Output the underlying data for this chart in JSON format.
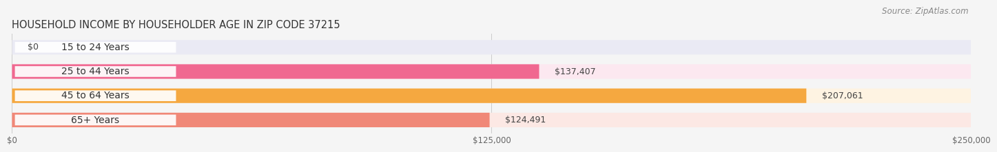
{
  "title": "HOUSEHOLD INCOME BY HOUSEHOLDER AGE IN ZIP CODE 37215",
  "source": "Source: ZipAtlas.com",
  "categories": [
    "15 to 24 Years",
    "25 to 44 Years",
    "45 to 64 Years",
    "65+ Years"
  ],
  "values": [
    0,
    137407,
    207061,
    124491
  ],
  "labels": [
    "$0",
    "$137,407",
    "$207,061",
    "$124,491"
  ],
  "bar_colors": [
    "#adadd6",
    "#f06890",
    "#f5a840",
    "#f08878"
  ],
  "bg_colors": [
    "#eaeaf4",
    "#fce8f0",
    "#fef3e2",
    "#fce8e4"
  ],
  "xlim": [
    0,
    250000
  ],
  "xticks": [
    0,
    125000,
    250000
  ],
  "xtick_labels": [
    "$0",
    "$125,000",
    "$250,000"
  ],
  "background_color": "#f5f5f5",
  "title_fontsize": 10.5,
  "source_fontsize": 8.5,
  "label_fontsize": 9,
  "category_fontsize": 10
}
